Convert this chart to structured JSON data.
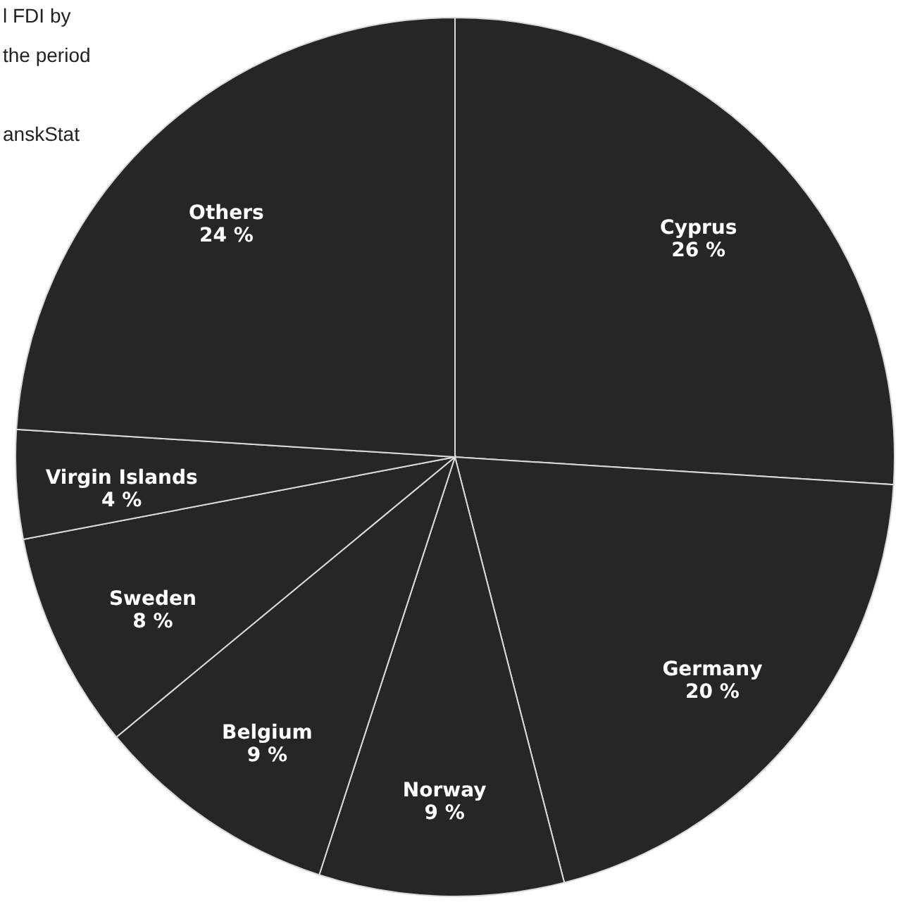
{
  "chart_data": {
    "type": "pie",
    "categories": [
      "Cyprus",
      "Germany",
      "Norway",
      "Belgium",
      "Sweden",
      "Virgin Islands",
      "Others"
    ],
    "values": [
      26,
      20,
      9,
      9,
      8,
      4,
      24
    ],
    "colors": [
      "#262626",
      "#262626",
      "#262626",
      "#262626",
      "#262626",
      "#262626",
      "#262626"
    ],
    "value_labels": [
      "26 %",
      "20 %",
      "9 %",
      "9 %",
      "8 %",
      "4 %",
      "24 %"
    ],
    "annotations": [
      "l FDI by",
      "the period",
      "anskStat"
    ]
  }
}
